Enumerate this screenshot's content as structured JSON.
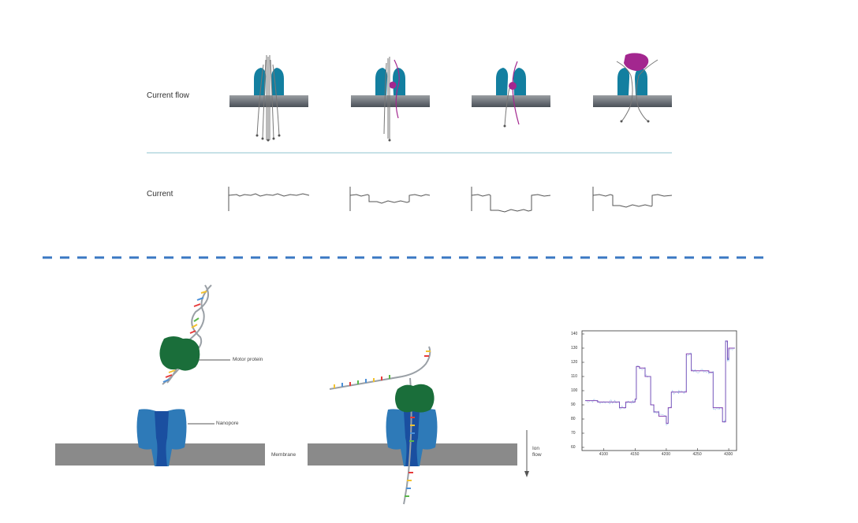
{
  "top_panel": {
    "current_flow_label": "Current flow",
    "current_label": "Current"
  },
  "bottom_panel": {
    "motor_protein_label": "Motor protein",
    "nanopore_label": "Nanopore",
    "membrane_label": "Membrane",
    "ion_flow_label_line1": "Ion",
    "ion_flow_label_line2": "flow"
  },
  "colors": {
    "pore_teal": "#137fa0",
    "analyte_magenta": "#a3278f",
    "membrane_gray": "#8a8a8a",
    "divider_blue": "#3a78c3",
    "pore_blue": "#2e7ab8",
    "pore_dark_blue": "#1a4fa0",
    "motor_green": "#1a6e3a",
    "trace_purple": "#8a3fb0"
  },
  "chart_data": {
    "type": "line",
    "y_ticks": [
      "60",
      "70",
      "80",
      "90",
      "100",
      "110",
      "120",
      "130",
      "140"
    ],
    "x_ticks": [
      "4100",
      "4150",
      "4200",
      "4250",
      "4300"
    ],
    "ylim": [
      60,
      140
    ],
    "xlim": [
      4070,
      4310
    ],
    "series": [
      {
        "x": [
          4070,
          4090,
          4110,
          4125,
          4135,
          4150,
          4152,
          4157,
          4166,
          4175,
          4180,
          4188,
          4200,
          4203,
          4208,
          4220,
          4228,
          4232,
          4240,
          4250,
          4268,
          4275,
          4285,
          4290,
          4293,
          4295,
          4298,
          4300,
          4310
        ],
        "y": [
          93,
          92,
          92,
          88,
          92,
          94,
          117,
          116,
          110,
          90,
          85,
          82,
          77,
          88,
          99,
          99,
          99,
          126,
          114,
          114,
          113,
          88,
          88,
          78,
          78,
          135,
          122,
          130,
          130
        ]
      }
    ]
  }
}
